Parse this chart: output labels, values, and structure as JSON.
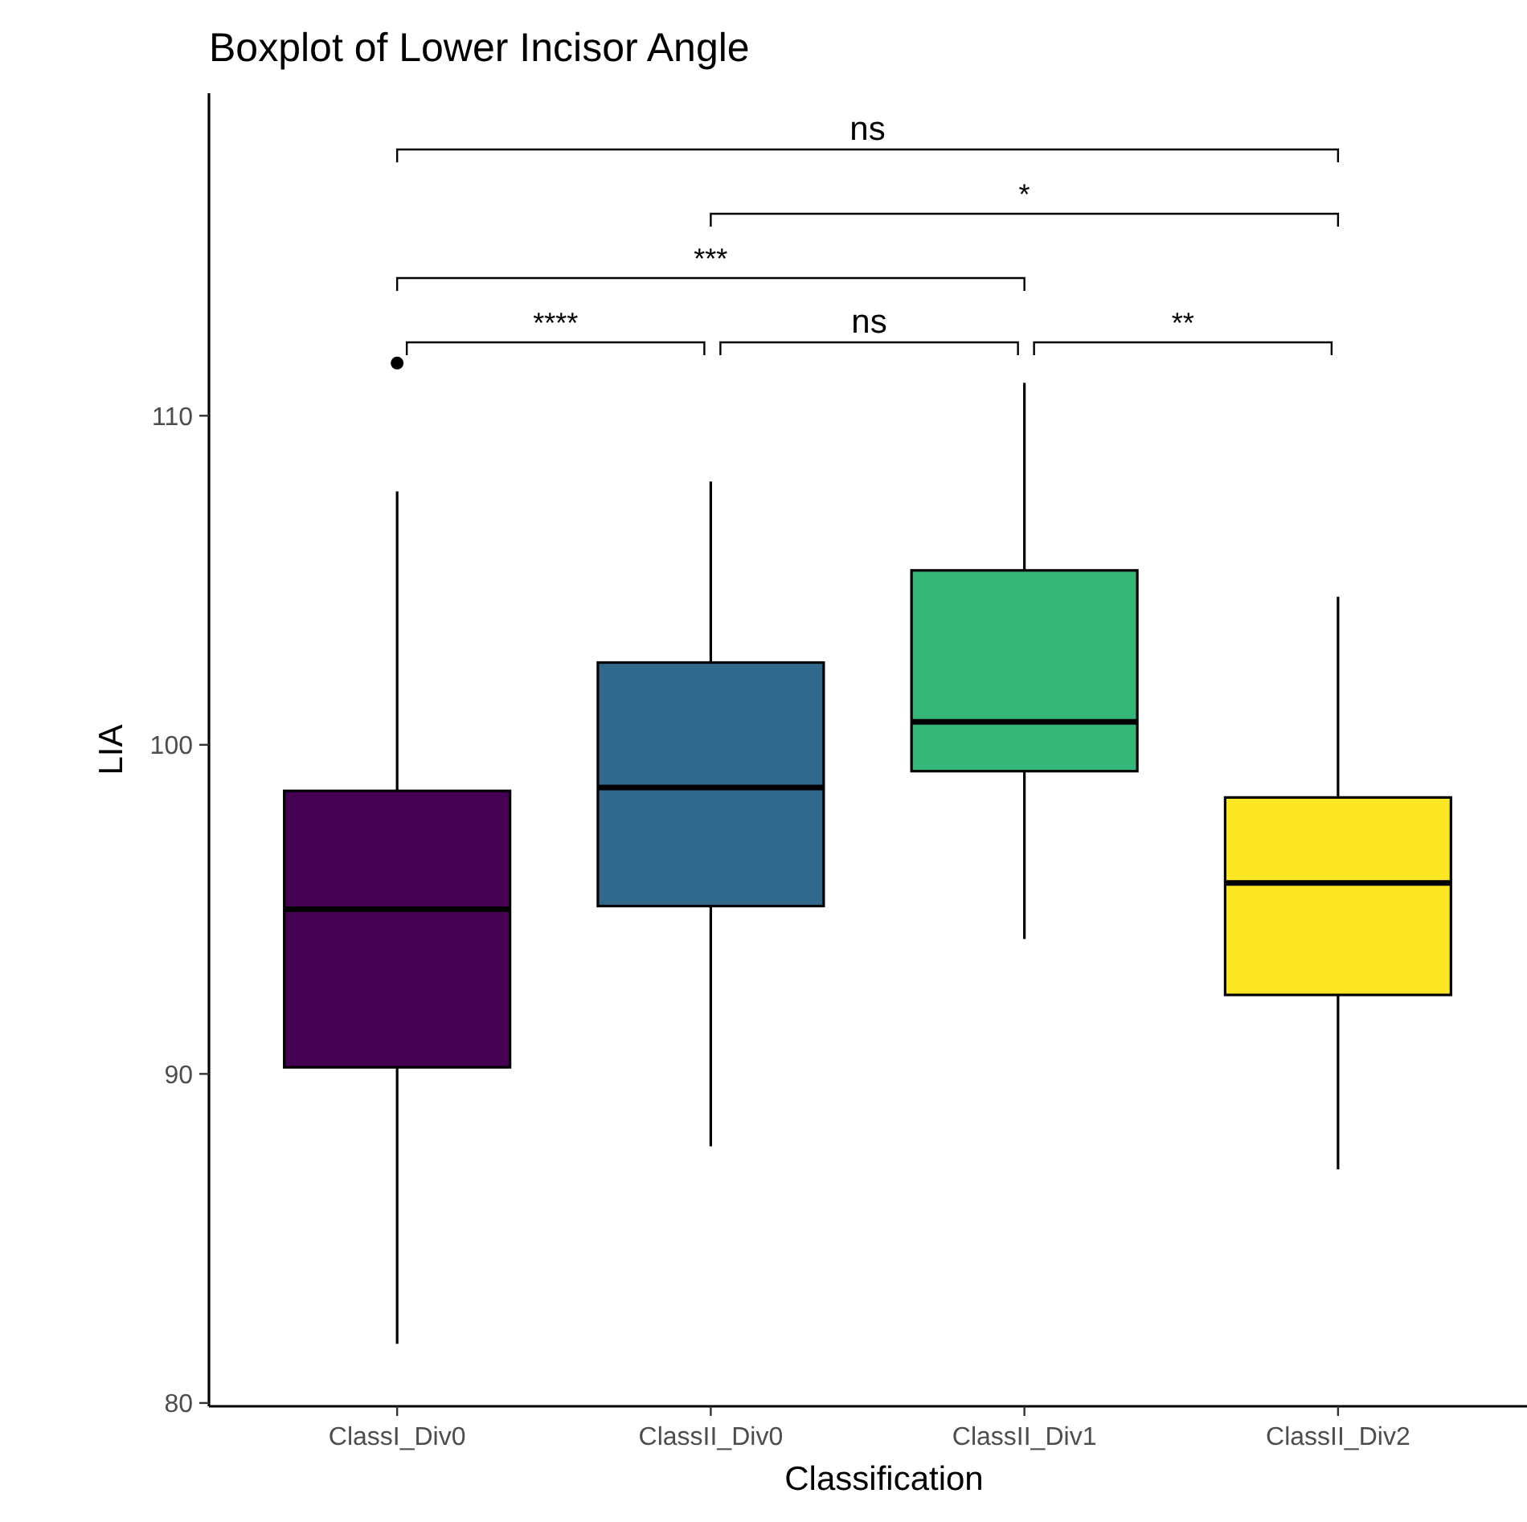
{
  "chart_data": {
    "type": "box",
    "title": "Boxplot of Lower Incisor Angle",
    "xlabel": "Classification",
    "ylabel": "LIA",
    "categories": [
      "ClassI_Div0",
      "ClassII_Div0",
      "ClassII_Div1",
      "ClassII_Div2"
    ],
    "colors": [
      "#440154",
      "#31688e",
      "#35b779",
      "#fde725"
    ],
    "boxes": [
      {
        "low": 81.8,
        "q1": 90.2,
        "median": 95.0,
        "q3": 98.6,
        "high": 107.7,
        "outliers": [
          111.6
        ]
      },
      {
        "low": 87.8,
        "q1": 95.1,
        "median": 98.7,
        "q3": 102.5,
        "high": 108.0
      },
      {
        "low": 94.1,
        "q1": 99.2,
        "median": 100.7,
        "q3": 105.3,
        "high": 111.0
      },
      {
        "low": 87.1,
        "q1": 92.4,
        "median": 95.8,
        "q3": 98.4,
        "high": 104.5
      }
    ],
    "ylim": [
      79.9,
      119.8
    ],
    "yticks": [
      80,
      90,
      100,
      110
    ],
    "grid": false,
    "legend": false,
    "annotations": [
      "****",
      "ns",
      "**",
      "***",
      "*",
      "ns"
    ]
  }
}
